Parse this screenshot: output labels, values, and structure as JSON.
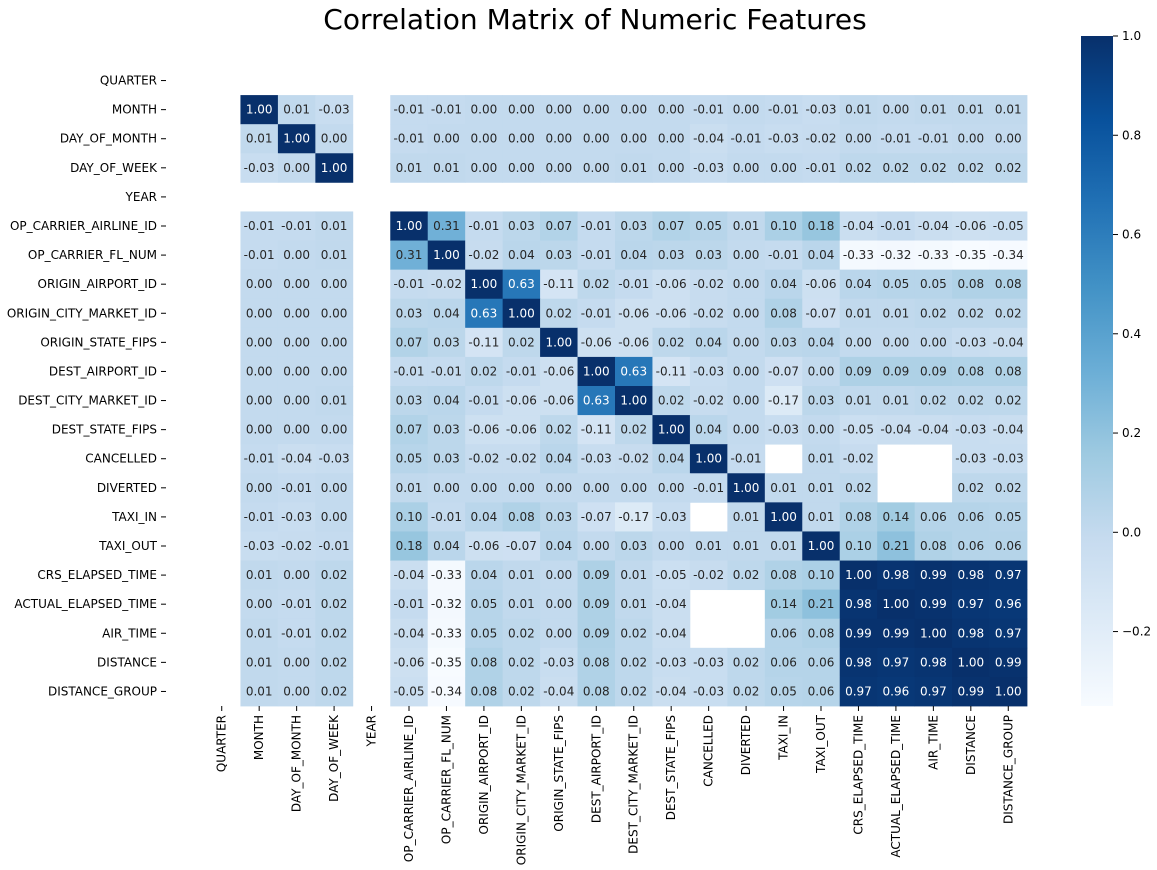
{
  "chart_data": {
    "type": "heatmap",
    "title": "Correlation Matrix of Numeric Features",
    "labels": [
      "QUARTER",
      "MONTH",
      "DAY_OF_MONTH",
      "DAY_OF_WEEK",
      "YEAR",
      "OP_CARRIER_AIRLINE_ID",
      "OP_CARRIER_FL_NUM",
      "ORIGIN_AIRPORT_ID",
      "ORIGIN_CITY_MARKET_ID",
      "ORIGIN_STATE_FIPS",
      "DEST_AIRPORT_ID",
      "DEST_CITY_MARKET_ID",
      "DEST_STATE_FIPS",
      "CANCELLED",
      "DIVERTED",
      "TAXI_IN",
      "TAXI_OUT",
      "CRS_ELAPSED_TIME",
      "ACTUAL_ELAPSED_TIME",
      "AIR_TIME",
      "DISTANCE",
      "DISTANCE_GROUP"
    ],
    "values": [
      [
        null,
        null,
        null,
        null,
        null,
        null,
        null,
        null,
        null,
        null,
        null,
        null,
        null,
        null,
        null,
        null,
        null,
        null,
        null,
        null,
        null,
        null
      ],
      [
        null,
        1.0,
        0.01,
        -0.03,
        null,
        -0.01,
        -0.01,
        0.0,
        -0.0,
        -0.0,
        0.0,
        -0.0,
        -0.0,
        -0.01,
        0.0,
        -0.01,
        -0.03,
        0.01,
        0.0,
        0.01,
        0.01,
        0.01
      ],
      [
        null,
        0.01,
        1.0,
        0.0,
        null,
        -0.01,
        0.0,
        0.0,
        -0.0,
        -0.0,
        0.0,
        -0.0,
        -0.0,
        -0.04,
        -0.01,
        -0.03,
        -0.02,
        -0.0,
        -0.01,
        -0.01,
        -0.0,
        -0.0
      ],
      [
        null,
        -0.03,
        0.0,
        1.0,
        null,
        0.01,
        0.01,
        0.0,
        0.0,
        -0.0,
        0.0,
        0.01,
        -0.0,
        -0.03,
        0.0,
        0.0,
        -0.01,
        0.02,
        0.02,
        0.02,
        0.02,
        0.02
      ],
      [
        null,
        null,
        null,
        null,
        null,
        null,
        null,
        null,
        null,
        null,
        null,
        null,
        null,
        null,
        null,
        null,
        null,
        null,
        null,
        null,
        null,
        null
      ],
      [
        null,
        -0.01,
        -0.01,
        0.01,
        null,
        1.0,
        0.31,
        -0.01,
        0.03,
        0.07,
        -0.01,
        0.03,
        0.07,
        0.05,
        0.01,
        0.1,
        0.18,
        -0.04,
        -0.01,
        -0.04,
        -0.06,
        -0.05
      ],
      [
        null,
        -0.01,
        0.0,
        0.01,
        null,
        0.31,
        1.0,
        -0.02,
        0.04,
        0.03,
        -0.01,
        0.04,
        0.03,
        0.03,
        0.0,
        -0.01,
        0.04,
        -0.33,
        -0.32,
        -0.33,
        -0.35,
        -0.34
      ],
      [
        null,
        0.0,
        0.0,
        0.0,
        null,
        -0.01,
        -0.02,
        1.0,
        0.63,
        -0.11,
        0.02,
        -0.01,
        -0.06,
        -0.02,
        -0.0,
        0.04,
        -0.06,
        0.04,
        0.05,
        0.05,
        0.08,
        0.08
      ],
      [
        null,
        -0.0,
        -0.0,
        0.0,
        null,
        0.03,
        0.04,
        0.63,
        1.0,
        0.02,
        -0.01,
        -0.06,
        -0.06,
        -0.02,
        0.0,
        0.08,
        -0.07,
        0.01,
        0.01,
        0.02,
        0.02,
        0.02
      ],
      [
        null,
        -0.0,
        -0.0,
        -0.0,
        null,
        0.07,
        0.03,
        -0.11,
        0.02,
        1.0,
        -0.06,
        -0.06,
        0.02,
        0.04,
        0.0,
        0.03,
        0.04,
        0.0,
        0.0,
        -0.0,
        -0.03,
        -0.04
      ],
      [
        null,
        0.0,
        0.0,
        0.0,
        null,
        -0.01,
        -0.01,
        0.02,
        -0.01,
        -0.06,
        1.0,
        0.63,
        -0.11,
        -0.03,
        0.0,
        -0.07,
        0.0,
        0.09,
        0.09,
        0.09,
        0.08,
        0.08
      ],
      [
        null,
        -0.0,
        -0.0,
        0.01,
        null,
        0.03,
        0.04,
        -0.01,
        -0.06,
        -0.06,
        0.63,
        1.0,
        0.02,
        -0.02,
        0.0,
        -0.17,
        0.03,
        0.01,
        0.01,
        0.02,
        0.02,
        0.02
      ],
      [
        null,
        -0.0,
        -0.0,
        -0.0,
        null,
        0.07,
        0.03,
        -0.06,
        -0.06,
        0.02,
        -0.11,
        0.02,
        1.0,
        0.04,
        0.0,
        -0.03,
        0.0,
        -0.05,
        -0.04,
        -0.04,
        -0.03,
        -0.04
      ],
      [
        null,
        -0.01,
        -0.04,
        -0.03,
        null,
        0.05,
        0.03,
        -0.02,
        -0.02,
        0.04,
        -0.03,
        -0.02,
        0.04,
        1.0,
        -0.01,
        null,
        0.01,
        -0.02,
        null,
        null,
        -0.03,
        -0.03
      ],
      [
        null,
        0.0,
        -0.01,
        0.0,
        null,
        0.01,
        0.0,
        -0.0,
        0.0,
        0.0,
        0.0,
        0.0,
        0.0,
        -0.01,
        1.0,
        0.01,
        0.01,
        0.02,
        null,
        null,
        0.02,
        0.02
      ],
      [
        null,
        -0.01,
        -0.03,
        0.0,
        null,
        0.1,
        -0.01,
        0.04,
        0.08,
        0.03,
        -0.07,
        -0.17,
        -0.03,
        null,
        0.01,
        1.0,
        0.01,
        0.08,
        0.14,
        0.06,
        0.06,
        0.05
      ],
      [
        null,
        -0.03,
        -0.02,
        -0.01,
        null,
        0.18,
        0.04,
        -0.06,
        -0.07,
        0.04,
        0.0,
        0.03,
        0.0,
        0.01,
        0.01,
        0.01,
        1.0,
        0.1,
        0.21,
        0.08,
        0.06,
        0.06
      ],
      [
        null,
        0.01,
        -0.0,
        0.02,
        null,
        -0.04,
        -0.33,
        0.04,
        0.01,
        0.0,
        0.09,
        0.01,
        -0.05,
        -0.02,
        0.02,
        0.08,
        0.1,
        1.0,
        0.98,
        0.99,
        0.98,
        0.97
      ],
      [
        null,
        0.0,
        -0.01,
        0.02,
        null,
        -0.01,
        -0.32,
        0.05,
        0.01,
        0.0,
        0.09,
        0.01,
        -0.04,
        null,
        null,
        0.14,
        0.21,
        0.98,
        1.0,
        0.99,
        0.97,
        0.96
      ],
      [
        null,
        0.01,
        -0.01,
        0.02,
        null,
        -0.04,
        -0.33,
        0.05,
        0.02,
        -0.0,
        0.09,
        0.02,
        -0.04,
        null,
        null,
        0.06,
        0.08,
        0.99,
        0.99,
        1.0,
        0.98,
        0.97
      ],
      [
        null,
        0.01,
        -0.0,
        0.02,
        null,
        -0.06,
        -0.35,
        0.08,
        0.02,
        -0.03,
        0.08,
        0.02,
        -0.03,
        -0.03,
        0.02,
        0.06,
        0.06,
        0.98,
        0.97,
        0.98,
        1.0,
        0.99
      ],
      [
        null,
        0.01,
        -0.0,
        0.02,
        null,
        -0.05,
        -0.34,
        0.08,
        0.02,
        -0.04,
        0.08,
        0.02,
        -0.04,
        -0.03,
        0.02,
        0.05,
        0.06,
        0.97,
        0.96,
        0.97,
        0.99,
        1.0
      ]
    ],
    "vmin": -0.35,
    "vmax": 1.0,
    "colormap": "Blues",
    "colorbar_ticks": [
      "1.0",
      "0.8",
      "0.6",
      "0.4",
      "0.2",
      "0.0",
      "−0.2"
    ],
    "colorbar_tick_values": [
      1.0,
      0.8,
      0.6,
      0.4,
      0.2,
      0.0,
      -0.2
    ]
  }
}
